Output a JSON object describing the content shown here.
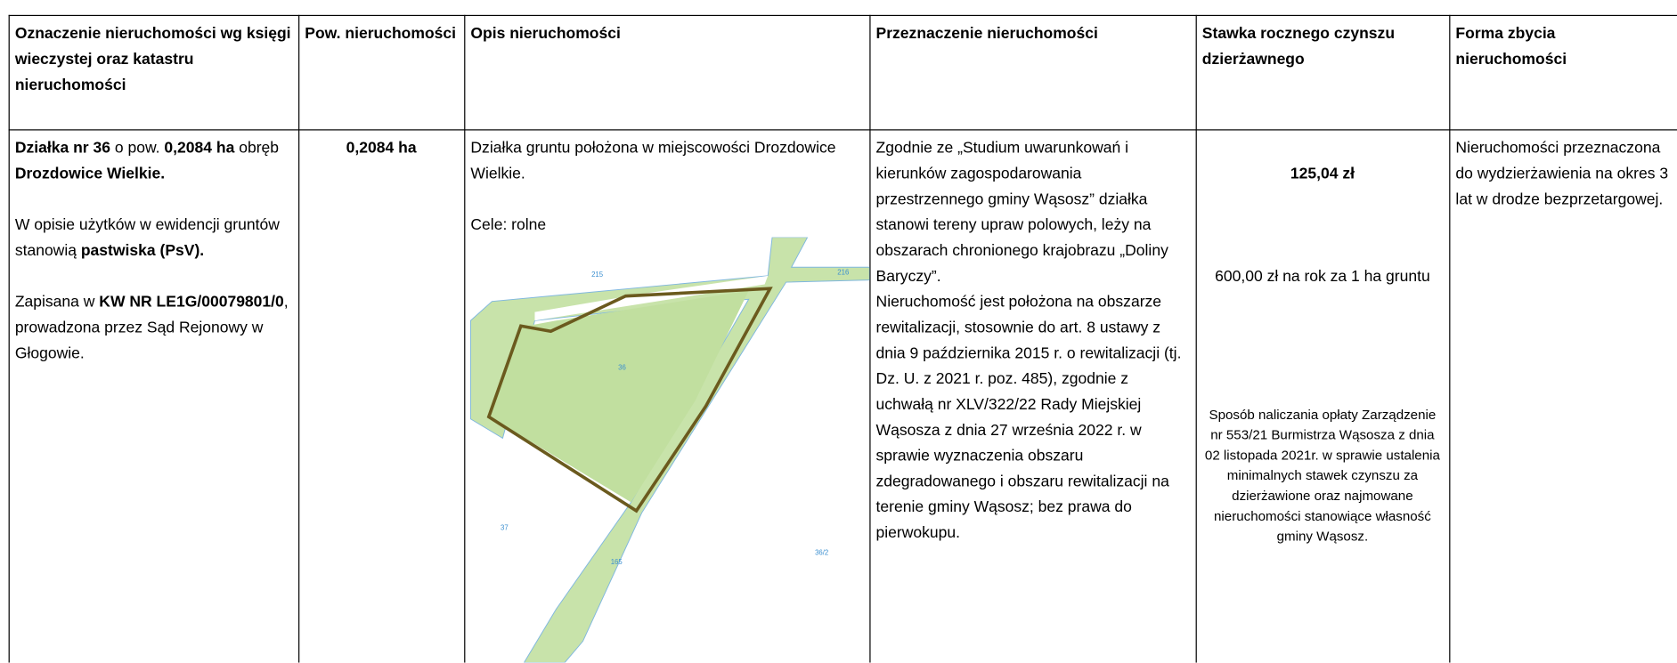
{
  "table": {
    "header": [
      "Oznaczenie nieruchomości wg księgi wieczystej oraz katastru nieruchomości",
      "Pow. nieruchomości",
      "Opis nieruchomości",
      "Przeznaczenie nieruchomości",
      "Stawka rocznego czynszu dzierżawnego",
      "Forma zbycia nieruchomości"
    ],
    "rows": [
      {
        "cells": [
          [
            [
              {
                "text": "Działka nr 36",
                "bold": true
              },
              {
                "text": " o pow. "
              },
              {
                "text": "0,2084 ha",
                "bold": true
              },
              {
                "text": " obręb "
              },
              {
                "text": "Drozdowice Wielkie.",
                "bold": true
              }
            ],
            [
              {
                "text": "W opisie użytków w ewidencji gruntów stanowią "
              },
              {
                "text": "pastwiska (PsV).",
                "bold": true
              }
            ],
            [
              {
                "text": "Zapisana w "
              },
              {
                "text": "KW NR LE1G/00079801/0",
                "bold": true
              },
              {
                "text": ", prowadzona przez Sąd Rejonowy w Głogowie."
              }
            ]
          ],
          [
            [
              {
                "text": "0,2084 ha",
                "bold": true
              }
            ]
          ],
          [
            [
              {
                "text": "Działka gruntu położona w miejscowości Drozdowice Wielkie."
              }
            ],
            [
              {
                "text": "Cele: rolne"
              }
            ]
          ],
          [
            [
              {
                "text": "Zgodnie ze „Studium uwarunkowań i kierunków zagospodarowania przestrzennego gminy Wąsosz” działka stanowi  tereny upraw polowych, leży na obszarach chronionego krajobrazu „Doliny Baryczy”."
              }
            ],
            [
              {
                "text": "Nieruchomość jest położona na obszarze rewitalizacji, stosownie do art. 8 ustawy z dnia 9 października 2015 r. o rewitalizacji (tj. Dz. U. z 2021 r. poz. 485), zgodnie z uchwałą nr XLV/322/22 Rady Miejskiej Wąsosza z dnia 27 września 2022 r. w sprawie wyznaczenia obszaru zdegradowanego i obszaru rewitalizacji na terenie gminy Wąsosz; bez prawa do pierwokupu."
              }
            ]
          ],
          [
            [
              {
                "text": "125,04 zł",
                "bold": true
              }
            ],
            [
              {
                "text": "600,00 zł na rok za 1 ha gruntu"
              }
            ],
            [
              {
                "text": "Sposób naliczania opłaty Zarządzenie nr 553/21 Burmistrza Wąsosza z dnia 02 listopada 2021r. w sprawie ustalenia minimalnych stawek czynszu za dzierżawione oraz najmowane nieruchomości stanowiące własność gminy Wąsosz."
              }
            ]
          ],
          [
            [
              {
                "text": "Nieruchomości przeznaczona do wydzierżawienia na okres 3 lat w drodze bezprzetargowej."
              }
            ]
          ]
        ]
      }
    ],
    "map_labels": [
      "215",
      "216",
      "36",
      "37",
      "165",
      "36/2"
    ]
  }
}
